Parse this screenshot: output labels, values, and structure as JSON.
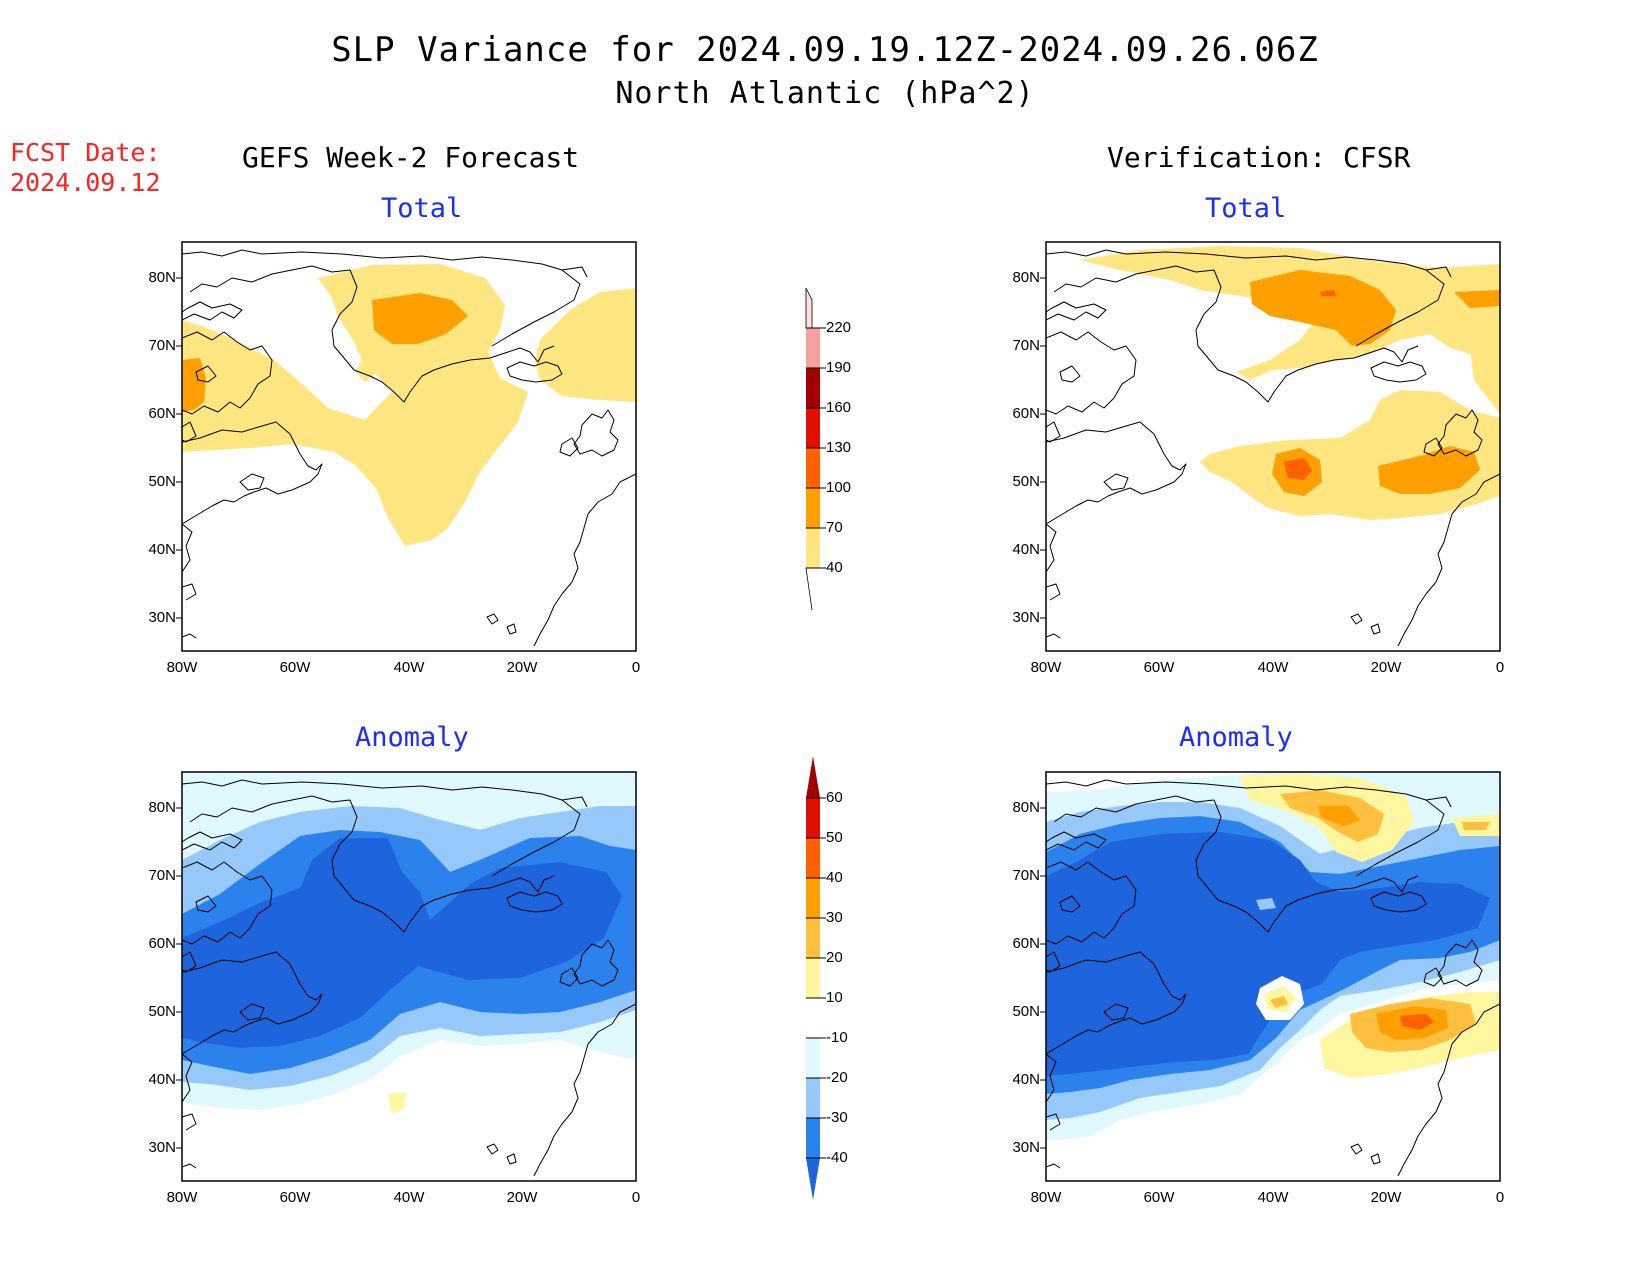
{
  "header": {
    "title": "SLP Variance for 2024.09.19.12Z-2024.09.26.06Z",
    "subtitle": "North Atlantic (hPa^2)",
    "fcst_label": "FCST Date:",
    "fcst_date": "2024.09.12"
  },
  "columns": {
    "left": "GEFS Week-2 Forecast",
    "right": "Verification: CFSR"
  },
  "panels": {
    "top_left_title": "Total",
    "top_right_title": "Total",
    "bottom_left_title": "Anomaly",
    "bottom_right_title": "Anomaly"
  },
  "axes": {
    "lat_labels": [
      "80N",
      "70N",
      "60N",
      "50N",
      "40N",
      "30N"
    ],
    "lon_labels": [
      "80W",
      "60W",
      "40W",
      "20W",
      "0"
    ]
  },
  "legend_total": {
    "levels": [
      "40",
      "70",
      "100",
      "130",
      "160",
      "190",
      "220"
    ],
    "colors": [
      "#ffe680",
      "#ffa000",
      "#ff6000",
      "#e01000",
      "#a00000",
      "#f4a0a0",
      "#ffe0e0"
    ]
  },
  "legend_anomaly": {
    "levels": [
      "-40",
      "-30",
      "-20",
      "-10",
      "10",
      "20",
      "30",
      "40",
      "50",
      "60"
    ],
    "colors": [
      "#1e64dc",
      "#2c82ec",
      "#96c8fa",
      "#e0f8ff",
      "#ffffff",
      "#fff6a0",
      "#ffc040",
      "#ffa000",
      "#ff6000",
      "#e01000",
      "#a00000"
    ]
  }
}
